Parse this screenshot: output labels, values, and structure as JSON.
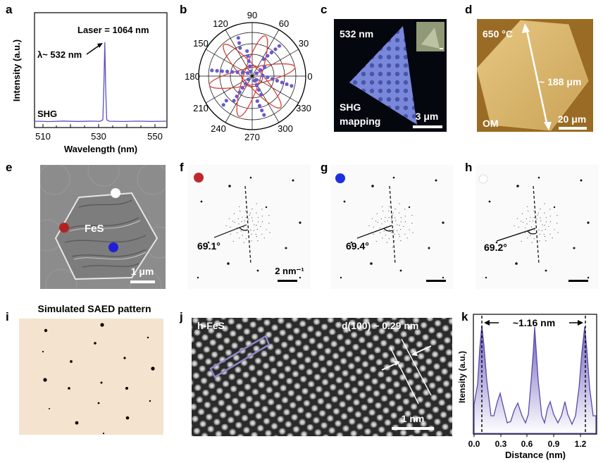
{
  "panel_labels": [
    "a",
    "b",
    "c",
    "d",
    "e",
    "f",
    "g",
    "h",
    "i",
    "j",
    "k"
  ],
  "panel_a": {
    "ylabel": "Intensity (a.u.)",
    "xlabel": "Wavelength (nm)",
    "xticks": [
      "510",
      "530",
      "550"
    ],
    "laser_text": "Laser = 1064 nm",
    "lambda_text": "λ~ 532 nm",
    "shg_text": "SHG",
    "line_color": "#5b4fc4"
  },
  "panel_b": {
    "angles": [
      "90",
      "60",
      "30",
      "0",
      "330",
      "300",
      "270",
      "240",
      "210",
      "180",
      "150",
      "120"
    ],
    "point_color": "#6a5acd",
    "fit_color": "#d9423a"
  },
  "panel_c": {
    "wavelength": "532 nm",
    "caption_line1": "SHG",
    "caption_line2": "mapping",
    "scale": "3 μm"
  },
  "panel_d": {
    "temperature": "650 °C",
    "length": "~ 188 μm",
    "mode": "OM",
    "scale": "20 μm"
  },
  "panel_e": {
    "material": "FeS",
    "scale": "1 μm",
    "dot_colors": [
      "#ffffff",
      "#b22222",
      "#1f1fd6"
    ]
  },
  "panel_f": {
    "angle": "69.1°",
    "scale": "2 nm⁻¹",
    "dot_color": "#c0272d"
  },
  "panel_g": {
    "angle": "69.4°",
    "dot_color": "#1f2fe0"
  },
  "panel_h": {
    "angle": "69.2°",
    "dot_color": "#ffffff"
  },
  "panel_i": {
    "title": "Simulated SAED pattern",
    "bg_color": "#f4e4cf"
  },
  "panel_j": {
    "material": "h-FeS",
    "spacing": "d(100) ~ 0.29 nm",
    "scale": "1 nm"
  },
  "panel_k": {
    "ylabel": "Itensity (a.u.)",
    "xlabel": "Distance (nm)",
    "xticks": [
      "0.0",
      "0.3",
      "0.6",
      "0.9",
      "1.2"
    ],
    "period": "~1.16 nm",
    "fill_color": "#7a6bc4"
  }
}
